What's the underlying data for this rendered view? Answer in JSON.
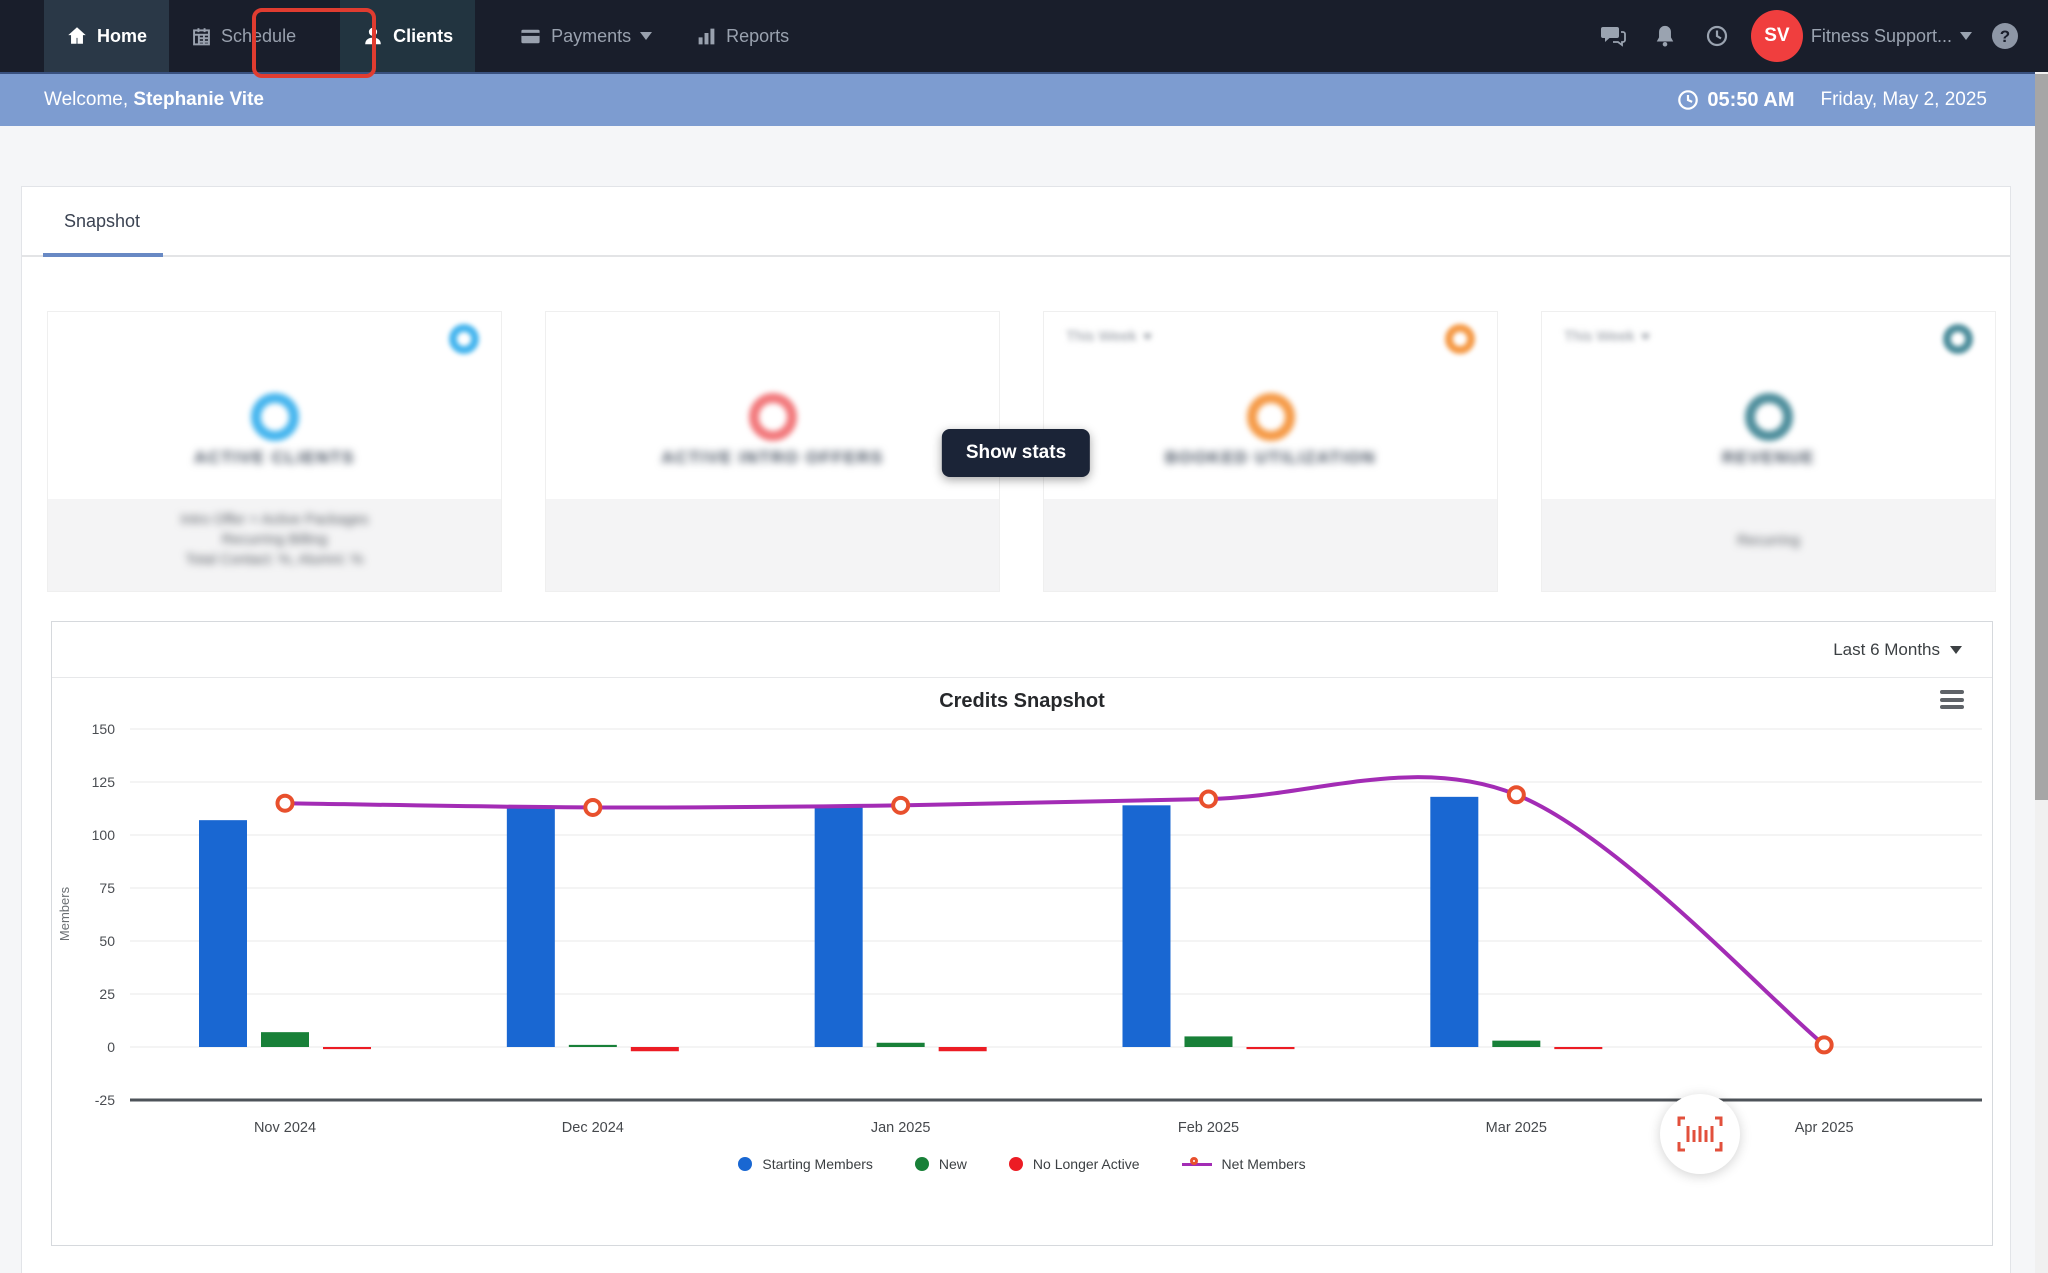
{
  "navbar": {
    "items": [
      {
        "label": "Home"
      },
      {
        "label": "Schedule"
      },
      {
        "label": "Clients"
      },
      {
        "label": "Payments"
      },
      {
        "label": "Reports"
      }
    ],
    "right": {
      "avatar_initials": "SV",
      "org_name": "Fitness Support..."
    }
  },
  "welcome": {
    "greeting": "Welcome,",
    "user_name": "Stephanie Vite",
    "time": "05:50 AM",
    "date": "Friday, May 2, 2025"
  },
  "tabs": {
    "snapshot": "Snapshot"
  },
  "overlay": {
    "show_stats": "Show stats"
  },
  "cards": [
    {
      "title": "ACTIVE CLIENTS",
      "accent": "#45b5ee",
      "footer_lines": [
        "Intro Offer + Active Packages",
        "Recurring Billing",
        "Total Contact: %, Alumni: %"
      ]
    },
    {
      "title": "ACTIVE INTRO OFFERS",
      "accent": "#f2797c",
      "footer_lines": []
    },
    {
      "title": "BOOKED UTILIZATION",
      "accent": "#f59a47",
      "period": "This Week",
      "footer_lines": []
    },
    {
      "title": "REVENUE",
      "accent": "#4e8e9c",
      "period": "This Week",
      "footer_lines": [
        "Recurring"
      ]
    }
  ],
  "chart_panel": {
    "range_selected": "Last 6 Months"
  },
  "chart_data": {
    "type": "bar",
    "title": "Credits Snapshot",
    "ylabel": "Members",
    "xlabel": "",
    "ylim": [
      -25,
      150
    ],
    "yticks": [
      150,
      125,
      100,
      75,
      50,
      25,
      0,
      -25
    ],
    "grid": true,
    "legend_position": "bottom",
    "categories": [
      "Nov 2024",
      "Dec 2024",
      "Jan 2025",
      "Feb 2025",
      "Mar 2025",
      "Apr 2025"
    ],
    "series": [
      {
        "name": "Starting Members",
        "type": "bar",
        "color": "#1967d2",
        "values": [
          107,
          113,
          113,
          114,
          118,
          0
        ]
      },
      {
        "name": "New",
        "type": "bar",
        "color": "#188038",
        "values": [
          7,
          1,
          2,
          5,
          3,
          0
        ]
      },
      {
        "name": "No Longer Active",
        "type": "bar",
        "color": "#ec1c24",
        "values": [
          -1,
          -2,
          -2,
          -1,
          -1,
          0
        ]
      },
      {
        "name": "Net Members",
        "type": "line",
        "color": "#a32cb5",
        "marker_color": "#e8502d",
        "values": [
          115,
          113,
          114,
          117,
          119,
          1
        ]
      }
    ],
    "legend_items": [
      {
        "label": "Starting Members",
        "swatch": "dot",
        "color": "#1967d2"
      },
      {
        "label": "New",
        "swatch": "dot",
        "color": "#188038"
      },
      {
        "label": "No Longer Active",
        "swatch": "dot",
        "color": "#ec1c24"
      },
      {
        "label": "Net Members",
        "swatch": "net",
        "color": "#a32cb5"
      }
    ]
  }
}
